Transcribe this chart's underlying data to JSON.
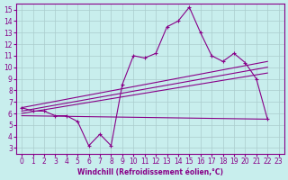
{
  "xlabel": "Windchill (Refroidissement éolien,°C)",
  "bg_color": "#c8eeed",
  "grid_color": "#aacccc",
  "line_color": "#880088",
  "text_color": "#880088",
  "xlim": [
    -0.5,
    23.5
  ],
  "ylim": [
    2.5,
    15.5
  ],
  "xticks": [
    0,
    1,
    2,
    3,
    4,
    5,
    6,
    7,
    8,
    9,
    10,
    11,
    12,
    13,
    14,
    15,
    16,
    17,
    18,
    19,
    20,
    21,
    22,
    23
  ],
  "yticks": [
    3,
    4,
    5,
    6,
    7,
    8,
    9,
    10,
    11,
    12,
    13,
    14,
    15
  ],
  "line1_x": [
    0,
    1,
    2,
    3,
    4,
    5,
    6,
    7,
    8,
    9,
    10,
    11,
    12,
    13,
    14,
    15,
    16,
    17,
    18,
    19,
    20,
    21,
    22
  ],
  "line1_y": [
    6.5,
    6.2,
    6.2,
    5.8,
    5.8,
    5.3,
    3.2,
    4.2,
    3.2,
    8.5,
    11.0,
    10.8,
    11.2,
    13.5,
    14.0,
    15.2,
    13.0,
    11.0,
    10.5,
    11.2,
    10.4,
    9.0,
    5.5
  ],
  "line2_x": [
    0,
    22
  ],
  "line2_y": [
    6.5,
    10.5
  ],
  "line3_x": [
    0,
    22
  ],
  "line3_y": [
    6.2,
    10.0
  ],
  "line4_x": [
    0,
    22
  ],
  "line4_y": [
    6.0,
    9.5
  ],
  "line5_x": [
    0,
    22
  ],
  "line5_y": [
    5.8,
    5.5
  ],
  "figsize": [
    3.2,
    2.0
  ],
  "dpi": 100
}
